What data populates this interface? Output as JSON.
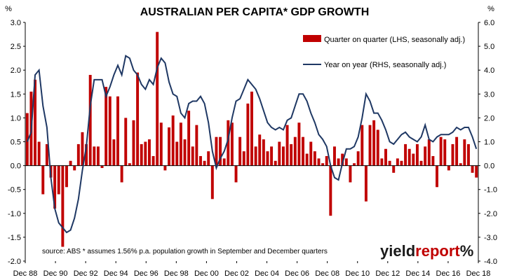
{
  "chart_data": {
    "type": "bar+line",
    "title": "AUSTRALIAN PER CAPITA* GDP GROWTH",
    "left_unit": "%",
    "right_unit": "%",
    "ylim_left": [
      -2.0,
      3.0
    ],
    "ylim_right": [
      -4.0,
      6.0
    ],
    "yticks_left": [
      "3.0",
      "2.5",
      "2.0",
      "1.5",
      "1.0",
      "0.5",
      "0.0",
      "-0.5",
      "-1.0",
      "-1.5",
      "-2.0"
    ],
    "yticks_right": [
      "6.0",
      "5.0",
      "4.0",
      "3.0",
      "2.0",
      "1.0",
      "0.0",
      "-1.0",
      "-2.0",
      "-3.0",
      "-4.0"
    ],
    "x_labels": [
      "Dec 88",
      "Dec 90",
      "Dec 92",
      "Dec 94",
      "Dec 96",
      "Dec 98",
      "Dec 00",
      "Dec 02",
      "Dec 04",
      "Dec 06",
      "Dec 08",
      "Dec 10",
      "Dec 12",
      "Dec 14",
      "Dec 16",
      "Dec 18"
    ],
    "grid": false,
    "legend_position": "top-right",
    "source_note": "source: ABS  * assumes 1.56% p.a. population growth in September and December quarters",
    "logo": "yieldreport%",
    "series": [
      {
        "name": "Quarter on quarter (LHS, seasonally adj.)",
        "type": "bar",
        "axis": "left",
        "color": "#c00000",
        "values": [
          1.1,
          1.55,
          1.8,
          0.5,
          -0.6,
          0.45,
          -0.25,
          -0.9,
          -0.6,
          -1.7,
          -0.45,
          0.1,
          -0.1,
          0.45,
          0.7,
          0.45,
          1.9,
          0.4,
          0.4,
          -0.05,
          1.65,
          1.45,
          0.55,
          1.45,
          -0.35,
          1.0,
          0.05,
          0.95,
          1.95,
          0.45,
          0.5,
          0.55,
          0.2,
          2.8,
          0.9,
          -0.1,
          0.8,
          1.05,
          0.5,
          0.9,
          0.55,
          1.15,
          0.4,
          0.85,
          0.2,
          0.1,
          0.3,
          -0.7,
          0.6,
          0.6,
          0.15,
          0.95,
          0.9,
          -0.35,
          0.6,
          0.3,
          1.3,
          1.55,
          0.4,
          0.65,
          0.55,
          0.3,
          0.4,
          0.1,
          0.5,
          0.4,
          0.85,
          0.45,
          0.6,
          0.9,
          0.6,
          0.25,
          0.5,
          0.3,
          0.15,
          0.05,
          0.2,
          -1.05,
          0.4,
          0.15,
          0.25,
          0.15,
          -0.35,
          0.05,
          0.3,
          0.85,
          -0.75,
          0.85,
          0.95,
          0.75,
          0.15,
          0.35,
          0.1,
          -0.15,
          0.15,
          0.1,
          0.45,
          0.35,
          0.25,
          0.45,
          0.1,
          0.4,
          0.55,
          0.2,
          -0.45,
          0.6,
          0.55,
          -0.1,
          0.45,
          0.6,
          0.05,
          0.55,
          0.45,
          -0.15,
          -0.25
        ]
      },
      {
        "name": "Year on year (RHS, seasonally adj.)",
        "type": "line",
        "axis": "right",
        "color": "#1f3864",
        "values": [
          1.0,
          1.4,
          3.8,
          4.0,
          2.5,
          1.6,
          -0.5,
          -1.8,
          -2.4,
          -2.6,
          -2.8,
          -2.7,
          -2.2,
          -1.4,
          -0.2,
          0.8,
          2.5,
          3.6,
          3.6,
          3.6,
          2.9,
          3.3,
          3.8,
          4.2,
          3.8,
          4.6,
          4.5,
          4.0,
          3.8,
          3.4,
          3.2,
          3.6,
          3.4,
          4.1,
          4.5,
          4.3,
          3.5,
          3.0,
          2.9,
          2.2,
          2.0,
          2.6,
          2.7,
          2.7,
          2.9,
          2.6,
          1.8,
          0.6,
          -0.1,
          0.3,
          0.6,
          1.1,
          2.0,
          2.7,
          2.8,
          3.2,
          3.6,
          3.4,
          3.2,
          2.8,
          2.3,
          1.8,
          1.6,
          1.5,
          1.6,
          1.5,
          1.9,
          2.0,
          2.5,
          3.0,
          3.0,
          2.7,
          2.2,
          1.8,
          1.3,
          1.1,
          0.8,
          0.0,
          -0.5,
          -0.6,
          0.1,
          0.7,
          0.7,
          0.8,
          1.2,
          2.0,
          3.0,
          2.7,
          2.2,
          2.2,
          1.9,
          1.5,
          1.0,
          0.9,
          1.1,
          1.3,
          1.4,
          1.2,
          1.1,
          1.0,
          1.2,
          1.7,
          1.1,
          1.0,
          1.2,
          1.3,
          1.3,
          1.3,
          1.4,
          1.6,
          1.5,
          1.6,
          1.6,
          1.2,
          0.7
        ]
      }
    ]
  },
  "colors": {
    "bar": "#c00000",
    "line": "#1f3864",
    "axis": "#000000"
  }
}
